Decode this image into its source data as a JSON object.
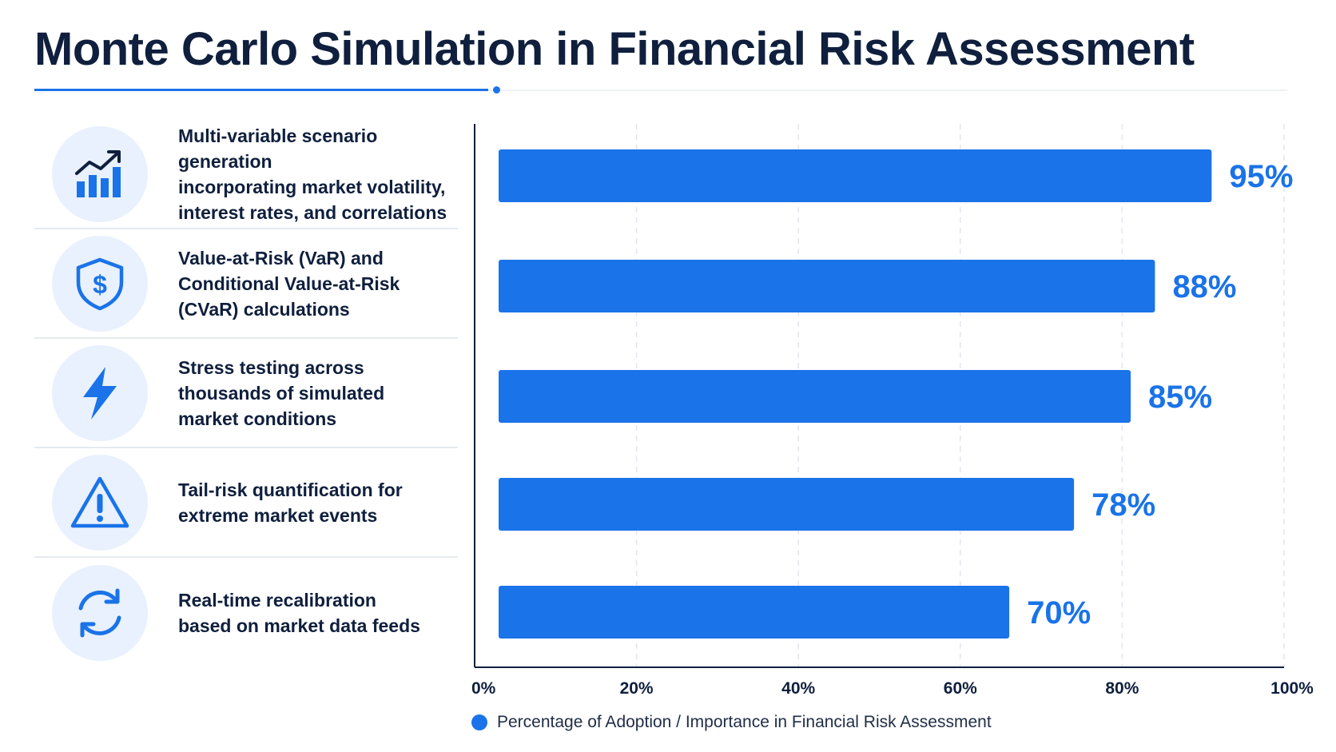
{
  "title": "Monte Carlo Simulation in Financial Risk Assessment",
  "colors": {
    "accent": "#1a73e8",
    "text": "#0f1f3d",
    "icon_bg": "#e8f1fd"
  },
  "features": [
    {
      "icon": "growth-chart-icon",
      "text": "Multi-variable scenario generation\nincorporating market volatility,\ninterest rates, and correlations"
    },
    {
      "icon": "shield-dollar-icon",
      "text": "Value-at-Risk (VaR) and\nConditional Value-at-Risk\n(CVaR) calculations"
    },
    {
      "icon": "lightning-icon",
      "text": "Stress testing across\nthousands of simulated\nmarket conditions"
    },
    {
      "icon": "warning-icon",
      "text": "Tail-risk quantification for\nextreme market events"
    },
    {
      "icon": "refresh-icon",
      "text": "Real-time recalibration\nbased on market data feeds"
    }
  ],
  "chart_data": {
    "type": "bar",
    "orientation": "horizontal",
    "values": [
      95,
      88,
      85,
      78,
      70
    ],
    "value_labels": [
      "95%",
      "88%",
      "85%",
      "78%",
      "70%"
    ],
    "xlim": [
      0,
      100
    ],
    "xticks": [
      0,
      20,
      40,
      60,
      80,
      100
    ],
    "xtick_labels": [
      "0%",
      "20%",
      "40%",
      "60%",
      "80%",
      "100%"
    ],
    "grid": "vertical dashed",
    "legend": "Percentage of Adoption / Importance in Financial Risk Assessment",
    "legend_position": "bottom-left",
    "bar_color": "#1a73e8"
  }
}
